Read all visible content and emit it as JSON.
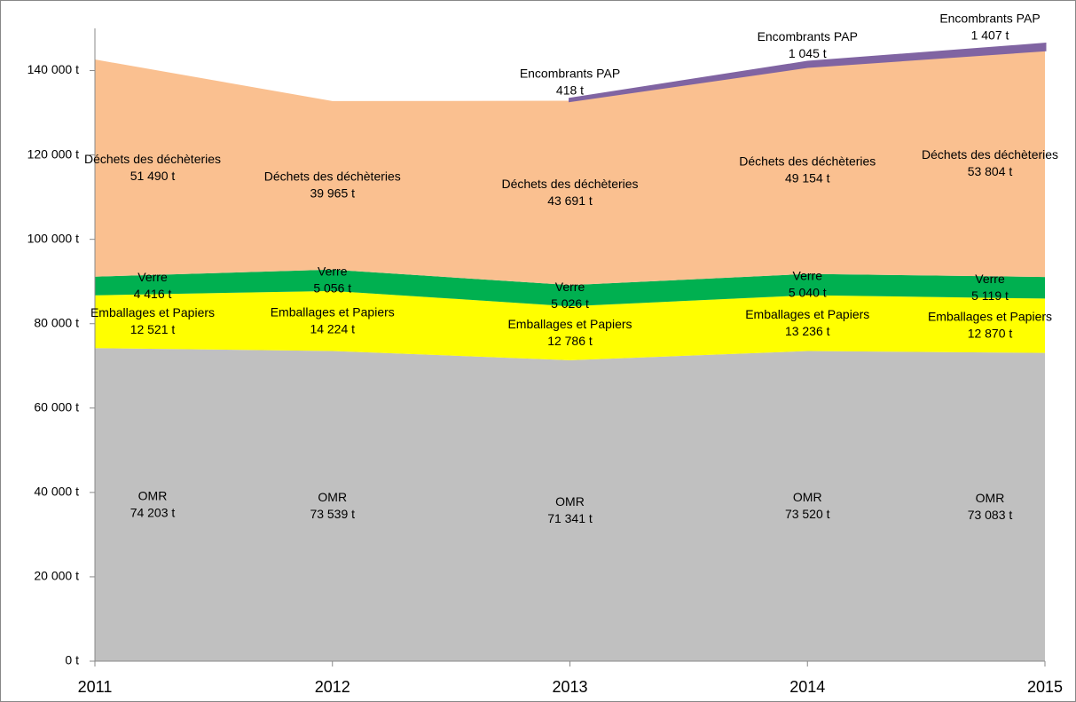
{
  "chart_data": {
    "type": "stacked_area",
    "categories": [
      "2011",
      "2012",
      "2013",
      "2014",
      "2015"
    ],
    "series": [
      {
        "name": "OMR",
        "color": "#c0c0c0",
        "values": [
          74203,
          73539,
          71341,
          73520,
          73083
        ],
        "value_labels": [
          "74 203 t",
          "73 539 t",
          "71 341 t",
          "73 520 t",
          "73 083 t"
        ]
      },
      {
        "name": "Emballages  et Papiers",
        "color": "#ffff00",
        "values": [
          12521,
          14224,
          12786,
          13236,
          12870
        ],
        "value_labels": [
          "12 521 t",
          "14 224 t",
          "12 786 t",
          "13 236 t",
          "12 870 t"
        ]
      },
      {
        "name": "Verre",
        "color": "#00b050",
        "values": [
          4416,
          5056,
          5026,
          5040,
          5119
        ],
        "value_labels": [
          "4 416 t",
          "5 056 t",
          "5 026 t",
          "5 040 t",
          "5 119 t"
        ]
      },
      {
        "name": "Déchets des déchèteries",
        "color": "#fac090",
        "values": [
          51490,
          39965,
          43691,
          49154,
          53804
        ],
        "value_labels": [
          "51 490 t",
          "39 965 t",
          "43 691 t",
          "49 154 t",
          "53 804 t"
        ]
      },
      {
        "name": "Encombrants PAP",
        "color": "#8064a2",
        "values": [
          null,
          null,
          418,
          1045,
          1407
        ],
        "value_labels": [
          null,
          null,
          "418 t",
          "1 045 t",
          "1 407 t"
        ]
      }
    ],
    "ylim": [
      0,
      150000
    ],
    "yticks": [
      {
        "value": 0,
        "label": "0 t"
      },
      {
        "value": 20000,
        "label": "20 000 t"
      },
      {
        "value": 40000,
        "label": "40 000 t"
      },
      {
        "value": 60000,
        "label": "60 000 t"
      },
      {
        "value": 80000,
        "label": "80 000 t"
      },
      {
        "value": 100000,
        "label": "100 000 t"
      },
      {
        "value": 120000,
        "label": "120 000 t"
      },
      {
        "value": 140000,
        "label": "140 000 t"
      }
    ]
  }
}
